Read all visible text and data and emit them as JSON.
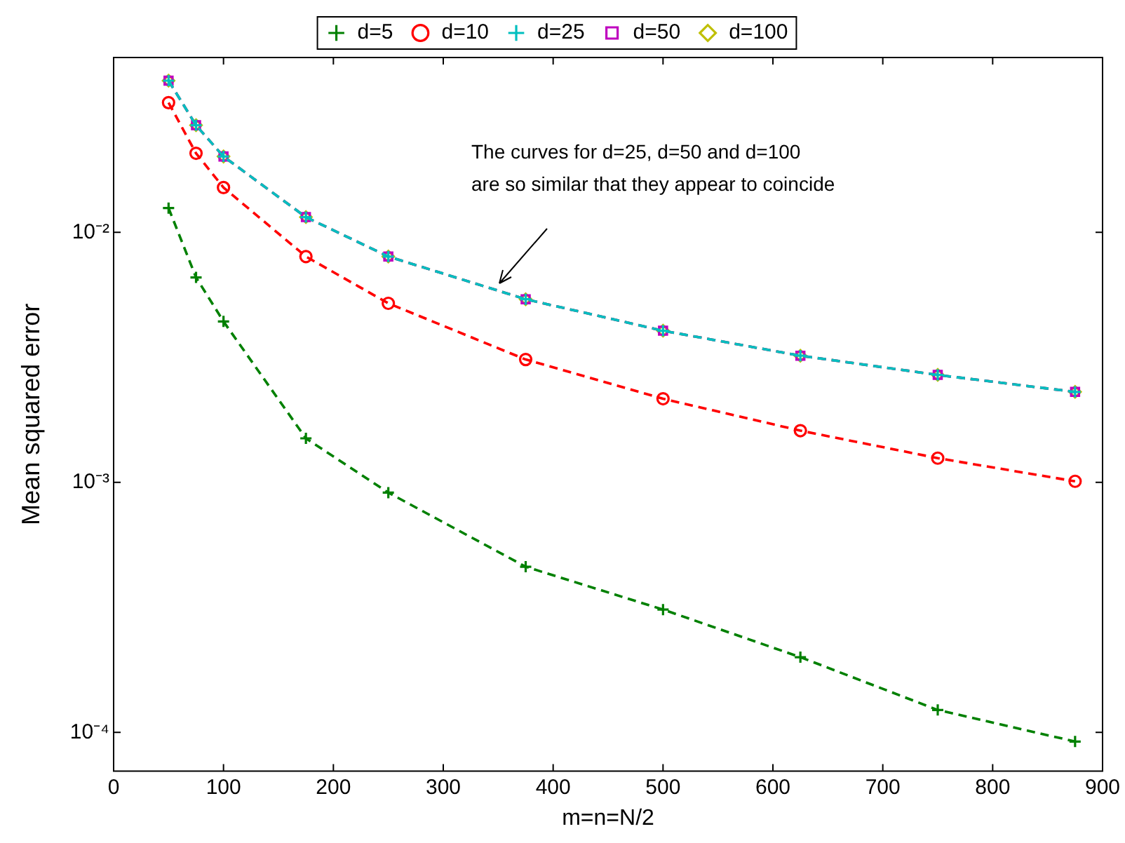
{
  "chart_data": {
    "type": "line",
    "xlabel": "m=n=N/2",
    "ylabel": "Mean squared error",
    "log": "y",
    "grid": false,
    "legend": "top",
    "line_style": "dashed",
    "x": [
      50,
      75,
      100,
      175,
      250,
      375,
      500,
      625,
      750,
      875
    ],
    "xlim": [
      0,
      900
    ],
    "xticks": [
      0,
      100,
      200,
      300,
      400,
      500,
      600,
      700,
      800,
      900
    ],
    "ylim": [
      7e-05,
      0.05
    ],
    "yticks": [
      {
        "value": 0.0001,
        "label": "10⁻⁴"
      },
      {
        "value": 0.001,
        "label": "10⁻³"
      },
      {
        "value": 0.01,
        "label": "10⁻²"
      }
    ],
    "series": [
      {
        "name": "d=5",
        "color": "#008000",
        "marker": "cross",
        "values": [
          0.0125,
          0.0066,
          0.0044,
          0.0015,
          0.00091,
          0.00046,
          0.00031,
          0.0002,
          0.000123,
          9.2e-05
        ]
      },
      {
        "name": "d=10",
        "color": "#ff0000",
        "marker": "circle",
        "values": [
          0.033,
          0.0207,
          0.0151,
          0.008,
          0.0052,
          0.0031,
          0.00216,
          0.00161,
          0.00125,
          0.00101
        ]
      },
      {
        "name": "d=25",
        "color": "#00bfbf",
        "marker": "cross",
        "values": [
          0.0404,
          0.0268,
          0.0201,
          0.0115,
          0.008,
          0.0054,
          0.00404,
          0.00321,
          0.00269,
          0.0023
        ]
      },
      {
        "name": "d=50",
        "color": "#bf00bf",
        "marker": "square",
        "values": [
          0.0404,
          0.0268,
          0.0201,
          0.0115,
          0.008,
          0.0054,
          0.00404,
          0.00321,
          0.00269,
          0.0023
        ]
      },
      {
        "name": "d=100",
        "color": "#bfbf00",
        "marker": "diamond",
        "values": [
          0.0404,
          0.0268,
          0.0201,
          0.0115,
          0.008,
          0.0054,
          0.00404,
          0.00321,
          0.00269,
          0.0023
        ]
      }
    ],
    "annotations": [
      "The curves for d=25, d=50 and d=100\nare so similar that they appear to coincide"
    ]
  }
}
